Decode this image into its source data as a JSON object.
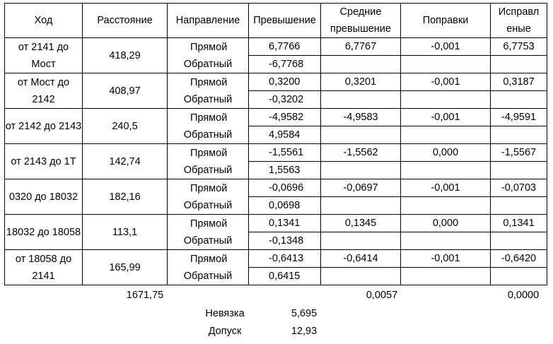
{
  "headers": {
    "hod": "Ход",
    "distance": "Расстояние",
    "direction": "Направление",
    "excess": "Превышение",
    "mean_excess": "Средние превышение",
    "corrections": "Поправки",
    "corrected": "Исправл еные"
  },
  "rows": [
    {
      "hod": "от 2141 до Мост",
      "distance": "418,29",
      "dir_fwd": "Прямой",
      "dir_back": "Обратный",
      "excess_fwd": "6,7766",
      "excess_back": "-6,7768",
      "mean": "6,7767",
      "correction": "-0,001",
      "corrected": "6,7753"
    },
    {
      "hod": "от Мост до 2142",
      "distance": "408,97",
      "dir_fwd": "Прямой",
      "dir_back": "Обратный",
      "excess_fwd": "0,3200",
      "excess_back": "-0,3202",
      "mean": "0,3201",
      "correction": "-0,001",
      "corrected": "0,3187"
    },
    {
      "hod": "от 2142 до 2143",
      "distance": "240,5",
      "dir_fwd": "Прямой",
      "dir_back": "Обратный",
      "excess_fwd": "-4,9582",
      "excess_back": "4,9584",
      "mean": "-4,9583",
      "correction": "-0,001",
      "corrected": "-4,9591"
    },
    {
      "hod": "от 2143 до 1Т",
      "distance": "142,74",
      "dir_fwd": "Прямой",
      "dir_back": "Обратный",
      "excess_fwd": "-1,5561",
      "excess_back": "1,5563",
      "mean": "-1,5562",
      "correction": "0,000",
      "corrected": "-1,5567"
    },
    {
      "hod": "0320 до 18032",
      "distance": "182,16",
      "dir_fwd": "Прямой",
      "dir_back": "Обратный",
      "excess_fwd": "-0,0696",
      "excess_back": "0,0698",
      "mean": "-0,0697",
      "correction": "-0,001",
      "corrected": "-0,0703"
    },
    {
      "hod": "18032 до 18058",
      "distance": "113,1",
      "dir_fwd": "Прямой",
      "dir_back": "Обратный",
      "excess_fwd": "0,1341",
      "excess_back": "-0,1348",
      "mean": "0,1345",
      "correction": "0,000",
      "corrected": "0,1341"
    },
    {
      "hod": "от 18058 до 2141",
      "distance": "165,99",
      "dir_fwd": "Прямой",
      "dir_back": "Обратный",
      "excess_fwd": "-0,6413",
      "excess_back": "0,6415",
      "mean": "-0,6414",
      "correction": "-0,001",
      "corrected": "-0,6420"
    }
  ],
  "totals": {
    "distance": "1671,75",
    "mean": "0,0057",
    "corrected": "0,0000"
  },
  "summary": {
    "misclosure_label": "Невязка",
    "misclosure_value": "5,695",
    "tolerance_label": "Допуск",
    "tolerance_value": "12,93"
  }
}
